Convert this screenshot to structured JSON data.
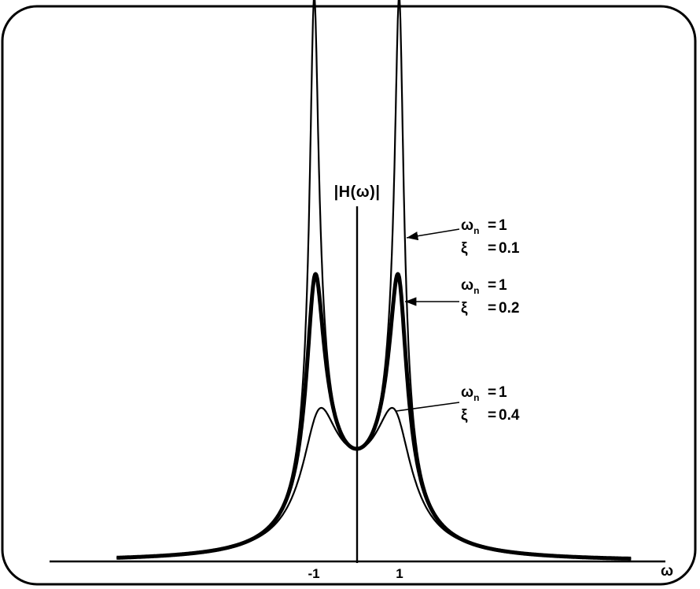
{
  "figure": {
    "background": "#ffffff",
    "frame_color": "#000000",
    "line_color": "#000000"
  },
  "chart_data": {
    "type": "line",
    "title": "",
    "ylabel": "|H(ω)|",
    "xlabel": "ω",
    "x_ticks": [
      {
        "value": -1,
        "label": "-1"
      },
      {
        "value": 1,
        "label": "1"
      }
    ],
    "x_range": [
      -5.6,
      6.4
    ],
    "value_at_omega_0": 1,
    "grid": false,
    "series": [
      {
        "name": "ωn = 1, ξ = 0.1",
        "omega_n": 1,
        "xi": 0.1,
        "peak_value": 5.03,
        "line_weight": "thin"
      },
      {
        "name": "ωn = 1, ξ = 0.2",
        "omega_n": 1,
        "xi": 0.2,
        "peak_value": 2.55,
        "line_weight": "thick"
      },
      {
        "name": "ωn = 1, ξ = 0.4",
        "omega_n": 1,
        "xi": 0.4,
        "peak_value": 1.36,
        "line_weight": "thin"
      }
    ],
    "annotations": [
      {
        "sym": "ω",
        "sub": "n",
        "eq1": "=",
        "val1": "1",
        "sym2": "ξ",
        "eq2": "=",
        "val2": "0.1"
      },
      {
        "sym": "ω",
        "sub": "n",
        "eq1": "=",
        "val1": "1",
        "sym2": "ξ",
        "eq2": "=",
        "val2": "0.2"
      },
      {
        "sym": "ω",
        "sub": "n",
        "eq1": "=",
        "val1": "1",
        "sym2": "ξ",
        "eq2": "=",
        "val2": "0.4"
      }
    ]
  }
}
